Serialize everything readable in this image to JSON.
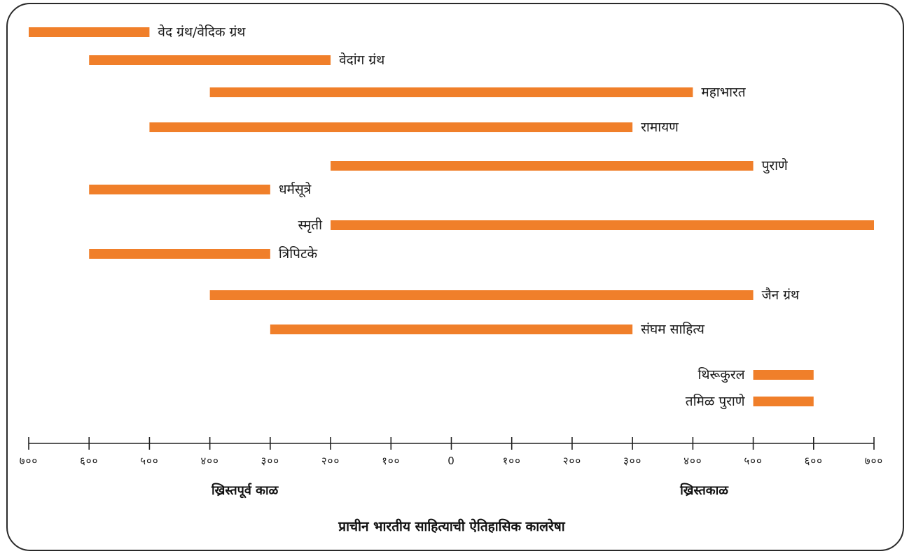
{
  "chart_data": {
    "type": "bar",
    "orientation": "horizontal-range",
    "title": "प्राचीन भारतीय साहित्याची ऐतिहासिक कालरेषा",
    "era_labels": {
      "bce": "ख्रिस्तपूर्व काळ",
      "ce": "ख्रिस्तकाळ"
    },
    "x_domain": [
      -700,
      700
    ],
    "ticks": [
      {
        "value": -700,
        "label": "७००"
      },
      {
        "value": -600,
        "label": "६००"
      },
      {
        "value": -500,
        "label": "५००"
      },
      {
        "value": -400,
        "label": "४००"
      },
      {
        "value": -300,
        "label": "३००"
      },
      {
        "value": -200,
        "label": "२००"
      },
      {
        "value": -100,
        "label": "१००"
      },
      {
        "value": 0,
        "label": "0"
      },
      {
        "value": 100,
        "label": "१००"
      },
      {
        "value": 200,
        "label": "२००"
      },
      {
        "value": 300,
        "label": "३००"
      },
      {
        "value": 400,
        "label": "४००"
      },
      {
        "value": 500,
        "label": "५००"
      },
      {
        "value": 600,
        "label": "६००"
      },
      {
        "value": 700,
        "label": "७००"
      }
    ],
    "series": [
      {
        "name": "वेद ग्रंथ/वेदिक ग्रंथ",
        "start": -700,
        "end": -500,
        "label_side": "right"
      },
      {
        "name": "वेदांग ग्रंथ",
        "start": -600,
        "end": -200,
        "label_side": "right"
      },
      {
        "name": "महाभारत",
        "start": -400,
        "end": 400,
        "label_side": "right"
      },
      {
        "name": "रामायण",
        "start": -500,
        "end": 300,
        "label_side": "right"
      },
      {
        "name": "पुराणे",
        "start": -200,
        "end": 500,
        "label_side": "right"
      },
      {
        "name": "धर्मसूत्रे",
        "start": -600,
        "end": -300,
        "label_side": "right"
      },
      {
        "name": "स्मृती",
        "start": -200,
        "end": 700,
        "label_side": "left"
      },
      {
        "name": "त्रिपिटके",
        "start": -600,
        "end": -300,
        "label_side": "right"
      },
      {
        "name": "जैन ग्रंथ",
        "start": -400,
        "end": 500,
        "label_side": "right"
      },
      {
        "name": "संघम साहित्य",
        "start": -300,
        "end": 300,
        "label_side": "right"
      },
      {
        "name": "थिरूकुरल",
        "start": 500,
        "end": 600,
        "label_side": "left"
      },
      {
        "name": "तमिळ पुराणे",
        "start": 500,
        "end": 600,
        "label_side": "left"
      }
    ],
    "colors": {
      "bar": "#f07f2a",
      "axis": "#222222",
      "border": "#2a2a2a"
    },
    "grid": false,
    "legend": "none"
  }
}
